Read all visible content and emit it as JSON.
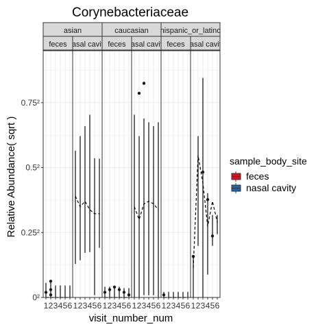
{
  "chart_data": {
    "type": "boxplot",
    "title": "Corynebacteriaceae",
    "xlabel": "visit_number_num",
    "ylabel": "Relative Abundance( sqrt )",
    "y_scale": "sqrt",
    "y_ticks": [
      {
        "value": 0,
        "label": "0²"
      },
      {
        "value": 0.0625,
        "label": "0.25²"
      },
      {
        "value": 0.25,
        "label": "0.5²"
      },
      {
        "value": 0.5625,
        "label": "0.75²"
      }
    ],
    "ylim_sqrt": [
      0,
      0.95
    ],
    "x_ticks": [
      "1",
      "2",
      "3",
      "4",
      "5",
      "6"
    ],
    "grid": true,
    "legend": {
      "title": "sample_body_site",
      "placement": "right",
      "entries": [
        {
          "label": "feces",
          "color": "#cb181d"
        },
        {
          "label": "nasal cavity",
          "color": "#2166ac"
        }
      ]
    },
    "facet_rows": [
      {
        "label": "asian"
      },
      {
        "label": "caucasian"
      },
      {
        "label": "hispanic_or_latino"
      }
    ],
    "panels": [
      {
        "ethnicity": "asian",
        "site_label": "feces",
        "boxes": [
          {
            "visit": 1,
            "min": 0,
            "max": 0.003
          },
          {
            "visit": 2,
            "min": 0,
            "max": 0.004
          },
          {
            "visit": 3,
            "min": 0,
            "max": 0.002
          },
          {
            "visit": 4,
            "min": 0,
            "max": 0.002
          },
          {
            "visit": 5,
            "min": 0,
            "max": 0.002
          },
          {
            "visit": 6,
            "min": 0,
            "max": 0.002
          }
        ],
        "means": [
          0,
          0,
          0,
          0,
          0,
          0
        ],
        "outliers": [
          {
            "visit": 1,
            "value": 0.0004
          },
          {
            "visit": 2,
            "value": 0.0001
          },
          {
            "visit": 2,
            "value": 0.0009
          },
          {
            "visit": 2,
            "value": 0.0039
          }
        ]
      },
      {
        "ethnicity": "asian",
        "site_label": "nasal cavity",
        "boxes": [
          {
            "visit": 1,
            "min": 0.017,
            "max": 0.318
          },
          {
            "visit": 2,
            "min": 0.021,
            "max": 0.384
          },
          {
            "visit": 3,
            "min": 0.03,
            "max": 0.433
          },
          {
            "visit": 4,
            "min": 0.031,
            "max": 0.493
          },
          {
            "visit": 5,
            "min": 0.0001,
            "max": 0.286
          },
          {
            "visit": 6,
            "min": 0.037,
            "max": 0.284
          }
        ],
        "means": [
          0.152,
          0.122,
          0.137,
          0.114,
          0.104,
          0.104
        ],
        "outliers": []
      },
      {
        "ethnicity": "caucasian",
        "site_label": "feces",
        "boxes": [
          {
            "visit": 1,
            "min": 0,
            "max": 0.0016
          },
          {
            "visit": 2,
            "min": 0,
            "max": 0.0016
          },
          {
            "visit": 3,
            "min": 0,
            "max": 0.0016
          },
          {
            "visit": 4,
            "min": 0,
            "max": 0.0016
          },
          {
            "visit": 5,
            "min": 0,
            "max": 0.0012
          },
          {
            "visit": 6,
            "min": 0,
            "max": 0.0012
          }
        ],
        "means": [
          0,
          0,
          0,
          0,
          0,
          0
        ],
        "outliers": [
          {
            "visit": 1,
            "value": 0.0004
          },
          {
            "visit": 2,
            "value": 0.0009
          },
          {
            "visit": 3,
            "value": 0.0016
          },
          {
            "visit": 4,
            "value": 0.0009
          },
          {
            "visit": 5,
            "value": 0.0004
          },
          {
            "visit": 6,
            "value": 0.0001
          }
        ]
      },
      {
        "ethnicity": "caucasian",
        "site_label": "nasal cavity",
        "boxes": [
          {
            "visit": 1,
            "min": 0,
            "max": 0.493
          },
          {
            "visit": 2,
            "min": 0,
            "max": 0.384
          },
          {
            "visit": 3,
            "min": 0.0001,
            "max": 0.473
          },
          {
            "visit": 4,
            "min": 0.0001,
            "max": 0.453
          },
          {
            "visit": 5,
            "min": 0.0001,
            "max": 0.433
          },
          {
            "visit": 6,
            "min": 0,
            "max": 0.453
          }
        ],
        "means": [
          0.122,
          0.09,
          0.13,
          0.137,
          0.13,
          0.114
        ],
        "outliers": [
          {
            "visit": 2,
            "value": 0.618
          },
          {
            "visit": 3,
            "value": 0.68
          }
        ]
      },
      {
        "ethnicity": "hispanic_or_latino",
        "site_label": "feces",
        "boxes": [
          {
            "visit": 1,
            "min": 0,
            "max": 0.0004
          },
          {
            "visit": 2,
            "min": 0,
            "max": 0.0004
          },
          {
            "visit": 3,
            "min": 0,
            "max": 0.0004
          },
          {
            "visit": 4,
            "min": 0,
            "max": 0.0004
          },
          {
            "visit": 5,
            "min": 0,
            "max": 0.0004
          },
          {
            "visit": 6,
            "min": 0,
            "max": 0.0004
          }
        ],
        "means": [
          0,
          0,
          0,
          0,
          0,
          0
        ],
        "outliers": [
          {
            "visit": 1,
            "value": 0.0001
          }
        ]
      },
      {
        "ethnicity": "hispanic_or_latino",
        "site_label": "nasal cavity",
        "boxes": [
          {
            "visit": 1,
            "min": 0,
            "max": 0.025
          },
          {
            "visit": 2,
            "min": 0.04,
            "max": 0.384
          },
          {
            "visit": 3,
            "min": 0,
            "max": 0.713
          },
          {
            "visit": 4,
            "min": 0.008,
            "max": 0.16
          },
          {
            "visit": 5,
            "min": 0.04,
            "max": 0.1
          },
          {
            "visit": 6,
            "min": 0.06,
            "max": 0.1
          }
        ],
        "means": [
          0.013,
          0.3,
          0.194,
          0.075,
          0.137,
          0.084
        ],
        "outliers": [
          {
            "visit": 1,
            "value": 0.025
          },
          {
            "visit": 3,
            "value": 0.233
          },
          {
            "visit": 4,
            "value": 0.142
          },
          {
            "visit": 5,
            "value": 0.056
          }
        ]
      }
    ]
  }
}
